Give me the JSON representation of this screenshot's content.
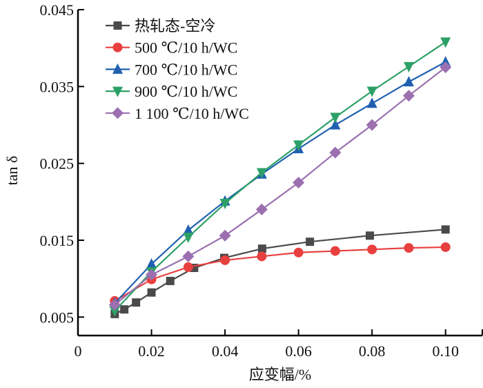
{
  "chart_data": {
    "type": "line",
    "title": "",
    "xlabel": "应变幅/%",
    "ylabel": "tan δ",
    "xlim": [
      0,
      0.11
    ],
    "ylim": [
      0.0026,
      0.045
    ],
    "xticks": [
      0,
      0.02,
      0.04,
      0.06,
      0.08,
      0.1
    ],
    "xtick_labels": [
      "0",
      "0.02",
      "0.04",
      "0.06",
      "0.08",
      "0.10"
    ],
    "yticks": [
      0.005,
      0.015,
      0.025,
      0.035,
      0.045
    ],
    "ytick_labels": [
      "0.005",
      "0.015",
      "0.025",
      "0.035",
      "0.045"
    ],
    "grid": false,
    "legend_position": "top-left",
    "series": [
      {
        "name": "热轧态-空冷",
        "color": "#4a4a4a",
        "marker": "square",
        "x": [
          0.01,
          0.0126,
          0.0158,
          0.02,
          0.0251,
          0.0316,
          0.0398,
          0.0501,
          0.0631,
          0.0794,
          0.1
        ],
        "y": [
          0.0054,
          0.006,
          0.0069,
          0.0082,
          0.0097,
          0.0114,
          0.0127,
          0.0139,
          0.0148,
          0.0156,
          0.0164
        ]
      },
      {
        "name": "500 ℃/10 h/WC",
        "color": "#e8403f",
        "marker": "circle",
        "x": [
          0.01,
          0.02,
          0.03,
          0.04,
          0.05,
          0.06,
          0.07,
          0.08,
          0.09,
          0.1
        ],
        "y": [
          0.0071,
          0.0099,
          0.0115,
          0.0124,
          0.0129,
          0.0134,
          0.0136,
          0.0138,
          0.014,
          0.0141
        ]
      },
      {
        "name": "700 ℃/10 h/WC",
        "color": "#2060b0",
        "marker": "triangle-up",
        "x": [
          0.01,
          0.02,
          0.03,
          0.04,
          0.05,
          0.06,
          0.07,
          0.08,
          0.09,
          0.1
        ],
        "y": [
          0.0068,
          0.0119,
          0.0163,
          0.0201,
          0.0236,
          0.0269,
          0.03,
          0.0328,
          0.0356,
          0.0382
        ]
      },
      {
        "name": "900 ℃/10 h/WC",
        "color": "#2ca066",
        "marker": "triangle-down",
        "x": [
          0.01,
          0.02,
          0.03,
          0.04,
          0.05,
          0.06,
          0.07,
          0.08,
          0.09,
          0.1
        ],
        "y": [
          0.0058,
          0.0109,
          0.0154,
          0.0198,
          0.0238,
          0.0274,
          0.031,
          0.0344,
          0.0376,
          0.0408
        ]
      },
      {
        "name": "1 100 ℃/10 h/WC",
        "color": "#9b6fb0",
        "marker": "diamond",
        "x": [
          0.01,
          0.02,
          0.03,
          0.04,
          0.05,
          0.06,
          0.07,
          0.08,
          0.09,
          0.1
        ],
        "y": [
          0.0066,
          0.0105,
          0.0129,
          0.0156,
          0.019,
          0.0225,
          0.0264,
          0.03,
          0.0338,
          0.0375
        ]
      }
    ]
  }
}
